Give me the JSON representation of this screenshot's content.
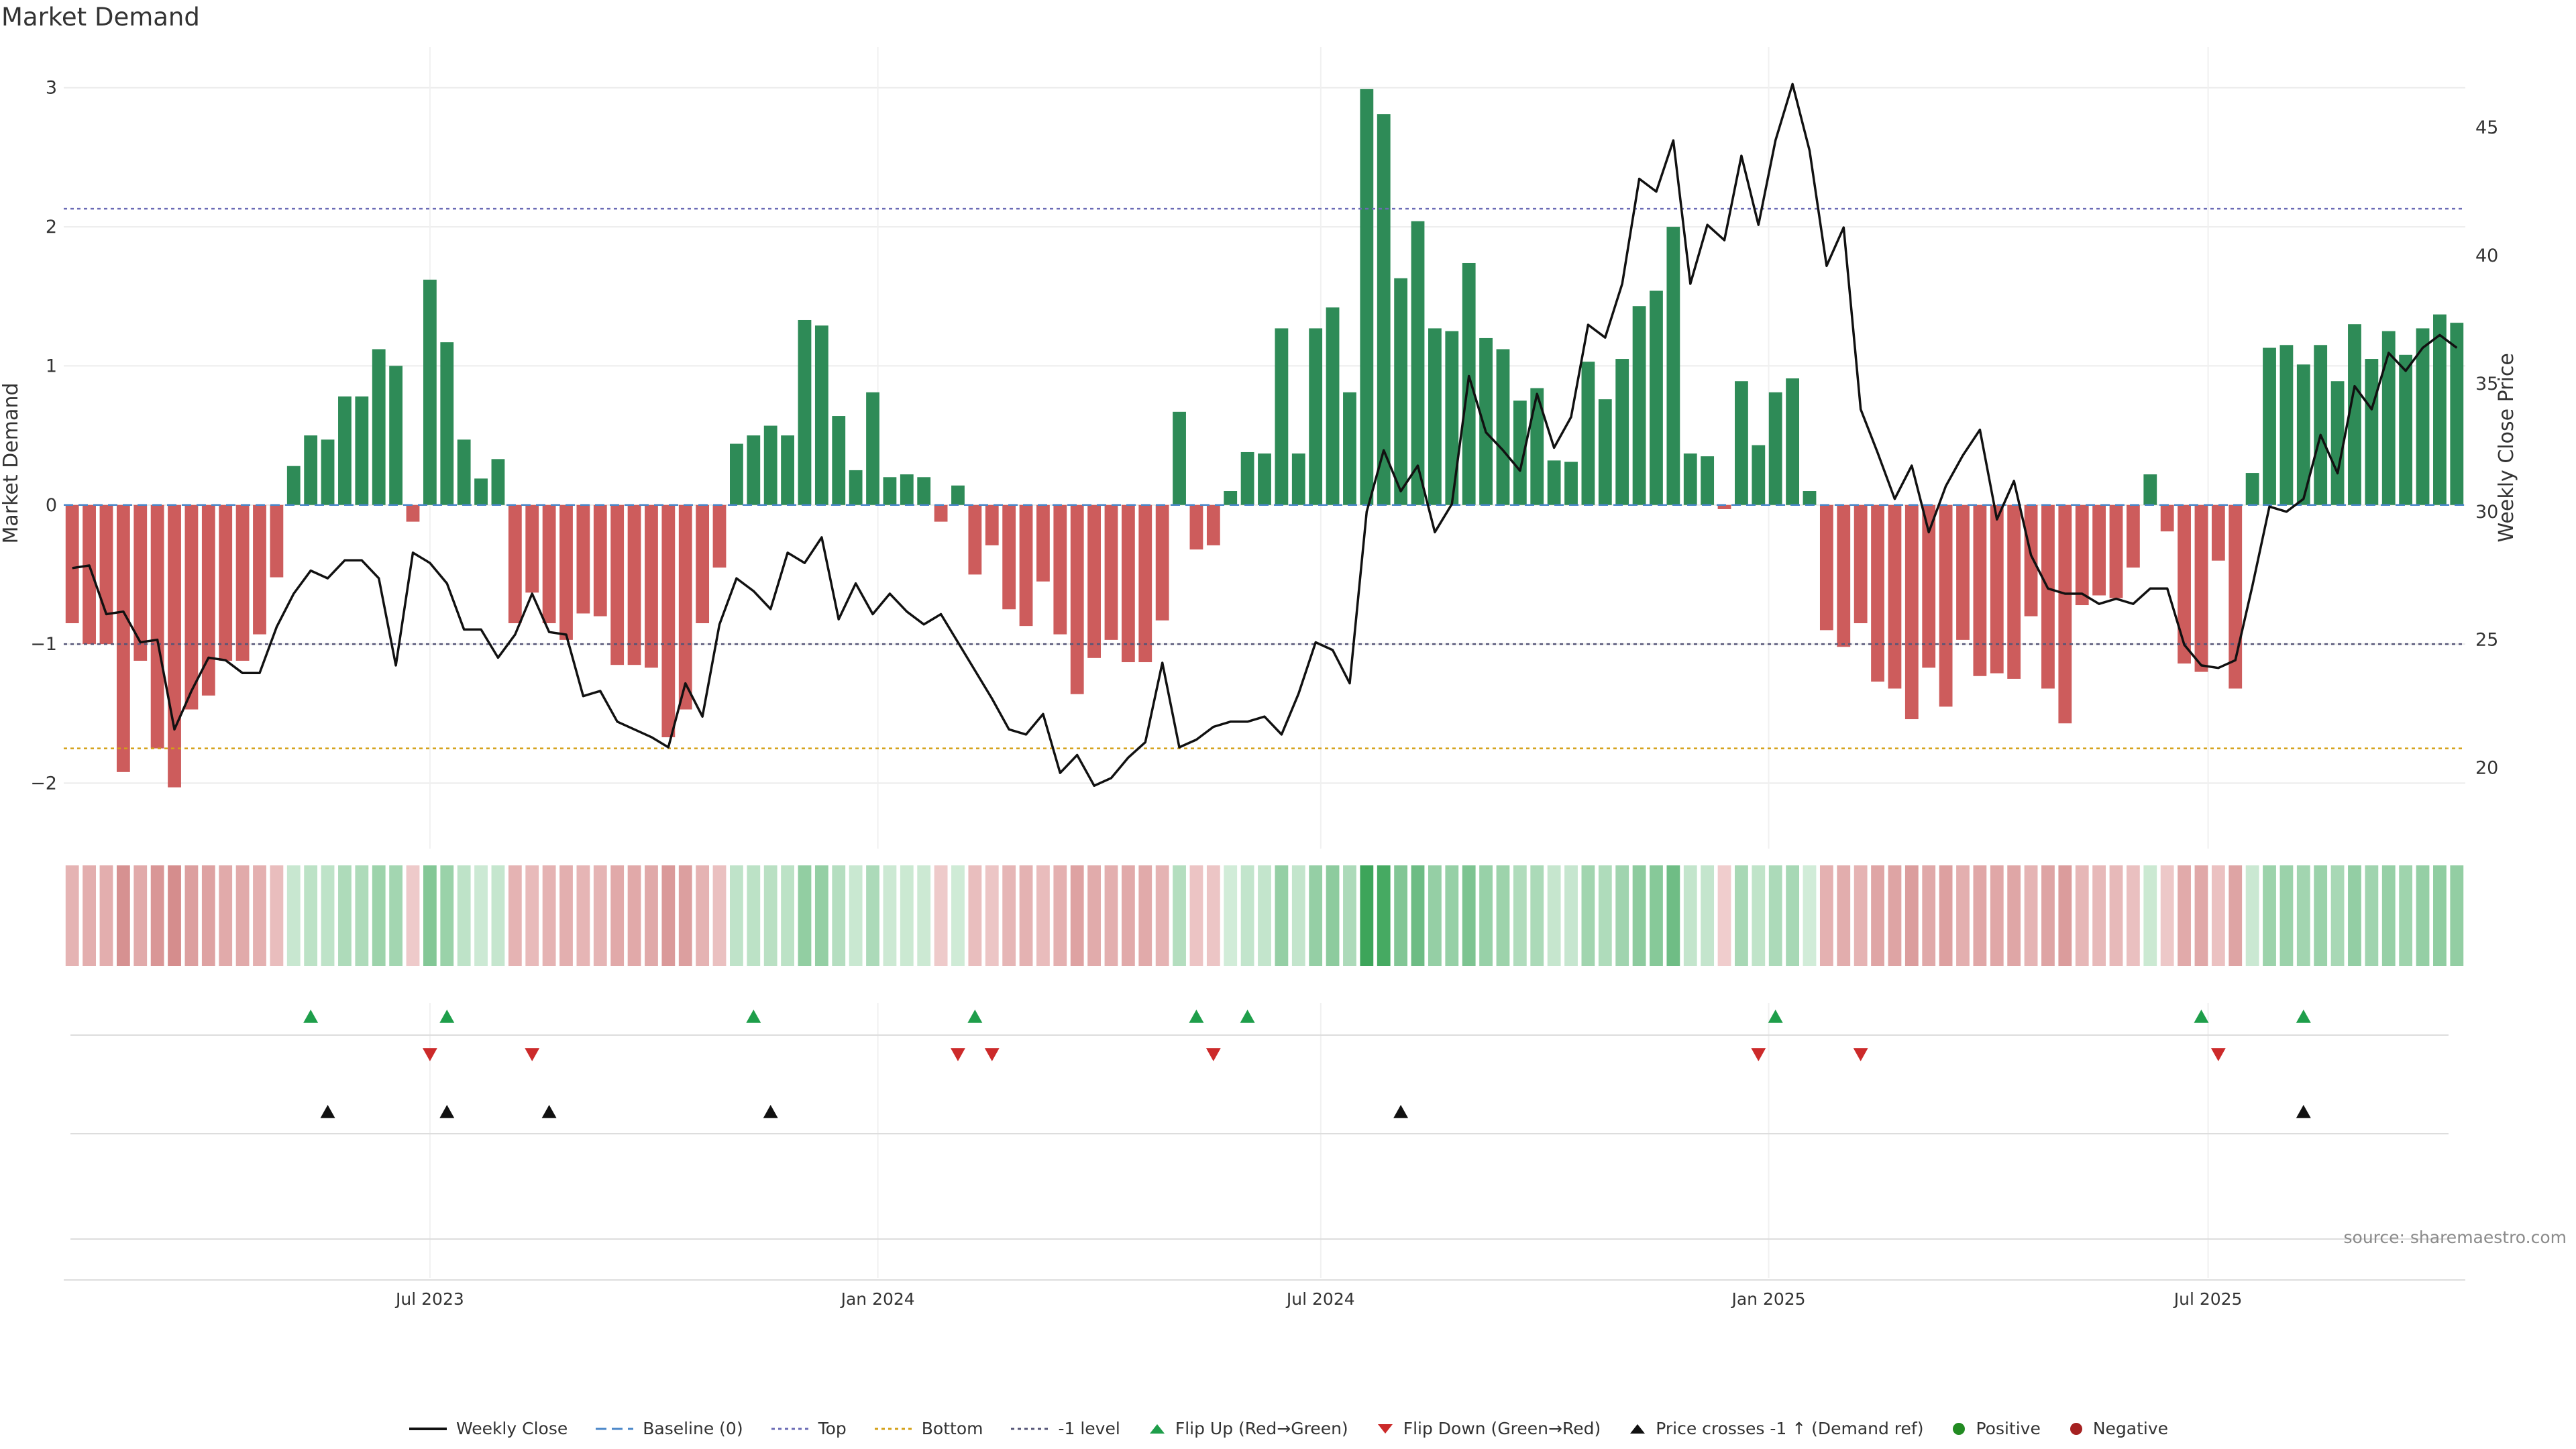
{
  "title": "Market Demand",
  "source": "source: sharemaestro.com",
  "colors": {
    "positive": "#2e8b57",
    "negative": "#cd5c5c",
    "close": "#111111",
    "top": "#6b6bb5",
    "bottom": "#d4a017",
    "minus_one": "#555577",
    "baseline": "#4a86c8",
    "flip_up": "#1e9e4a",
    "flip_down": "#cc2a2a",
    "price_cross": "#111111",
    "positive_dot": "#228b22",
    "negative_dot": "#a52121"
  },
  "chart_data": {
    "type": "bar",
    "title": "Market Demand",
    "ylabel": "Market Demand",
    "y2label": "Weekly Close Price",
    "ylim": [
      -2.35,
      3.1
    ],
    "y2lim": [
      17.5,
      47.1
    ],
    "yticks": [
      -2,
      -1,
      0,
      1,
      2,
      3
    ],
    "y2ticks": [
      20,
      25,
      30,
      35,
      40,
      45
    ],
    "levels": {
      "top": 2.13,
      "bottom": -1.75,
      "minus_one": -1.0,
      "baseline": 0
    },
    "xticks": [
      {
        "label": "Jul 2023",
        "week": 21.5
      },
      {
        "label": "Jan 2024",
        "week": 47.8
      },
      {
        "label": "Jul 2024",
        "week": 73.8
      },
      {
        "label": "Jan 2025",
        "week": 100.1
      },
      {
        "label": "Jul 2025",
        "week": 125.9
      }
    ],
    "demand": [
      -0.85,
      -1.0,
      -1.0,
      -1.92,
      -1.12,
      -1.75,
      -2.03,
      -1.47,
      -1.37,
      -1.12,
      -1.12,
      -0.93,
      -0.52,
      0.28,
      0.5,
      0.47,
      0.78,
      0.78,
      1.12,
      1.0,
      -0.12,
      1.62,
      1.17,
      0.47,
      0.19,
      0.33,
      -0.85,
      -0.63,
      -0.85,
      -0.97,
      -0.78,
      -0.8,
      -1.15,
      -1.15,
      -1.17,
      -1.67,
      -1.47,
      -0.85,
      -0.45,
      0.44,
      0.5,
      0.57,
      0.5,
      1.33,
      1.29,
      0.64,
      0.25,
      0.81,
      0.2,
      0.22,
      0.2,
      -0.12,
      0.14,
      -0.5,
      -0.29,
      -0.75,
      -0.87,
      -0.55,
      -0.93,
      -1.36,
      -1.1,
      -0.97,
      -1.13,
      -1.13,
      -0.83,
      0.67,
      -0.32,
      -0.29,
      0.1,
      0.38,
      0.37,
      1.27,
      0.37,
      1.27,
      1.42,
      0.81,
      2.99,
      2.81,
      1.63,
      2.04,
      1.27,
      1.25,
      1.74,
      1.2,
      1.12,
      0.75,
      0.84,
      0.32,
      0.31,
      1.03,
      0.76,
      1.05,
      1.43,
      1.54,
      2.0,
      0.37,
      0.35,
      -0.03,
      0.89,
      0.43,
      0.81,
      0.91,
      0.1,
      -0.9,
      -1.02,
      -0.85,
      -1.27,
      -1.32,
      -1.54,
      -1.17,
      -1.45,
      -0.97,
      -1.23,
      -1.21,
      -1.25,
      -0.8,
      -1.32,
      -1.57,
      -0.72,
      -0.65,
      -0.67,
      -0.45,
      0.22,
      -0.19,
      -1.14,
      -1.2,
      -0.4,
      -1.32,
      0.23,
      1.13,
      1.15,
      1.01,
      1.15,
      0.89,
      1.3,
      1.05,
      1.25,
      1.08,
      1.27,
      1.37,
      1.31
    ],
    "close": [
      27.8,
      27.9,
      26.0,
      26.1,
      24.9,
      25.0,
      21.5,
      23.0,
      24.3,
      24.2,
      23.7,
      23.7,
      25.5,
      26.8,
      27.7,
      27.4,
      28.1,
      28.1,
      27.4,
      24.0,
      28.4,
      28.0,
      27.2,
      25.4,
      25.4,
      24.3,
      25.2,
      26.8,
      25.3,
      25.2,
      22.8,
      23.0,
      21.8,
      21.5,
      21.2,
      20.8,
      23.3,
      22.0,
      25.6,
      27.4,
      26.9,
      26.2,
      28.4,
      28.0,
      29.0,
      25.8,
      27.2,
      26.0,
      26.8,
      26.1,
      25.6,
      26.0,
      24.9,
      23.8,
      22.7,
      21.5,
      21.3,
      22.1,
      19.8,
      20.5,
      19.3,
      19.6,
      20.4,
      21.0,
      24.1,
      20.8,
      21.1,
      21.6,
      21.8,
      21.8,
      22.0,
      21.3,
      22.9,
      24.9,
      24.6,
      23.3,
      30.0,
      32.4,
      30.8,
      31.8,
      29.2,
      30.3,
      35.3,
      33.1,
      32.4,
      31.6,
      34.6,
      32.5,
      33.7,
      37.3,
      36.8,
      38.9,
      43.0,
      42.5,
      44.5,
      38.9,
      41.2,
      40.6,
      43.9,
      41.2,
      44.5,
      46.7,
      44.1,
      39.6,
      41.1,
      34.0,
      32.3,
      30.5,
      31.8,
      29.2,
      31.0,
      32.2,
      33.2,
      29.7,
      31.2,
      28.3,
      27.0,
      26.8,
      26.8,
      26.4,
      26.6,
      26.4,
      27.0,
      27.0,
      24.8,
      24.0,
      23.9,
      24.2,
      27.1,
      30.2,
      30.0,
      30.5,
      33.0,
      31.5,
      34.9,
      34.0,
      36.2,
      35.5,
      36.4,
      36.9,
      36.4
    ],
    "flip_up_weeks": [
      14,
      22,
      40,
      53,
      66,
      69,
      100,
      125,
      131
    ],
    "flip_down_weeks": [
      21,
      27,
      52,
      54,
      67,
      99,
      105,
      126
    ],
    "price_cross_weeks": [
      15,
      22,
      28,
      41,
      78,
      131
    ],
    "legend": [
      "Weekly Close",
      "Baseline (0)",
      "Top",
      "Bottom",
      "-1 level",
      "Flip Up (Red→Green)",
      "Flip Down (Green→Red)",
      "Price crosses -1 ↑ (Demand ref)",
      "Positive",
      "Negative"
    ]
  }
}
